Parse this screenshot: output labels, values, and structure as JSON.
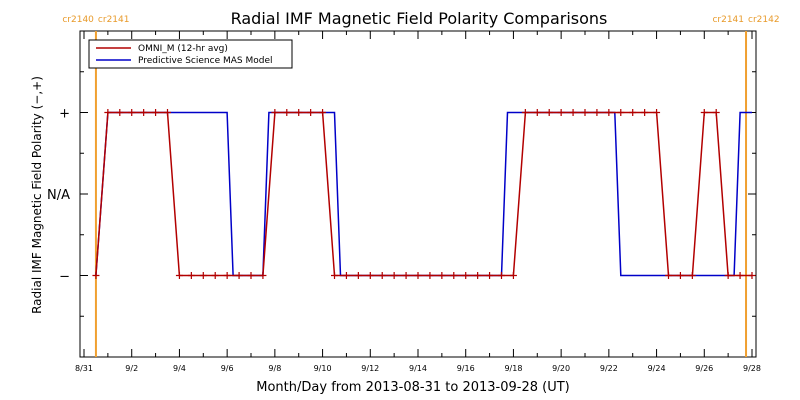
{
  "chart_data": {
    "type": "line",
    "title": "Radial IMF Magnetic Field Polarity Comparisons",
    "xlabel": "Month/Day from 2013-08-31 to 2013-09-28 (UT)",
    "ylabel": "Radial IMF Magnetic Field Polarity (−,+)",
    "xlim": [
      "2013-08-31",
      "2013-09-28"
    ],
    "ylim": [
      -2,
      2
    ],
    "x_ticks": [
      "8/31",
      "9/2",
      "9/4",
      "9/6",
      "9/8",
      "9/10",
      "9/12",
      "9/14",
      "9/16",
      "9/18",
      "9/20",
      "9/22",
      "9/24",
      "9/26",
      "9/28"
    ],
    "y_ticks": [
      {
        "value": 1,
        "label": "+"
      },
      {
        "value": 0,
        "label": "N/A"
      },
      {
        "value": -1,
        "label": "−"
      }
    ],
    "legend_position": "top-left",
    "carrington_rotations": [
      {
        "x": "2013-08-31T12:00",
        "left_label": "cr2140",
        "right_label": "cr2141"
      },
      {
        "x": "2013-09-27T18:00",
        "left_label": "cr2141",
        "right_label": "cr2142"
      }
    ],
    "series": [
      {
        "name": "OMNI_M (12-hr avg)",
        "color": "#b20000",
        "marker": "plus",
        "x": [
          "2013-08-31T12:00",
          "2013-09-01T00:00",
          "2013-09-01T12:00",
          "2013-09-02T00:00",
          "2013-09-02T12:00",
          "2013-09-03T00:00",
          "2013-09-03T12:00",
          "2013-09-04T00:00",
          "2013-09-04T12:00",
          "2013-09-05T00:00",
          "2013-09-05T12:00",
          "2013-09-06T00:00",
          "2013-09-06T12:00",
          "2013-09-07T00:00",
          "2013-09-07T12:00",
          "2013-09-08T00:00",
          "2013-09-08T12:00",
          "2013-09-09T00:00",
          "2013-09-09T12:00",
          "2013-09-10T00:00",
          "2013-09-10T12:00",
          "2013-09-11T00:00",
          "2013-09-11T12:00",
          "2013-09-12T00:00",
          "2013-09-12T12:00",
          "2013-09-13T00:00",
          "2013-09-13T12:00",
          "2013-09-14T00:00",
          "2013-09-14T12:00",
          "2013-09-15T00:00",
          "2013-09-15T12:00",
          "2013-09-16T00:00",
          "2013-09-16T12:00",
          "2013-09-17T00:00",
          "2013-09-17T12:00",
          "2013-09-18T00:00",
          "2013-09-18T12:00",
          "2013-09-19T00:00",
          "2013-09-19T12:00",
          "2013-09-20T00:00",
          "2013-09-20T12:00",
          "2013-09-21T00:00",
          "2013-09-21T12:00",
          "2013-09-22T00:00",
          "2013-09-22T12:00",
          "2013-09-23T00:00",
          "2013-09-23T12:00",
          "2013-09-24T00:00",
          "2013-09-24T12:00",
          "2013-09-25T00:00",
          "2013-09-25T12:00",
          "2013-09-26T00:00",
          "2013-09-26T12:00",
          "2013-09-27T00:00",
          "2013-09-27T12:00",
          "2013-09-28T00:00"
        ],
        "values": [
          -1,
          1,
          1,
          1,
          1,
          1,
          1,
          -1,
          -1,
          -1,
          -1,
          -1,
          -1,
          -1,
          -1,
          1,
          1,
          1,
          1,
          1,
          -1,
          -1,
          -1,
          -1,
          -1,
          -1,
          -1,
          -1,
          -1,
          -1,
          -1,
          -1,
          -1,
          -1,
          -1,
          -1,
          1,
          1,
          1,
          1,
          1,
          1,
          1,
          1,
          1,
          1,
          1,
          1,
          -1,
          -1,
          -1,
          1,
          1,
          -1,
          -1,
          -1
        ]
      },
      {
        "name": "Predictive Science MAS Model",
        "color": "#0000c8",
        "marker": "none",
        "x": [
          "2013-08-31T12:00",
          "2013-09-01T00:00",
          "2013-09-06T00:00",
          "2013-09-06T06:00",
          "2013-09-07T12:00",
          "2013-09-07T18:00",
          "2013-09-10T12:00",
          "2013-09-10T18:00",
          "2013-09-17T12:00",
          "2013-09-17T18:00",
          "2013-09-22T06:00",
          "2013-09-22T12:00",
          "2013-09-27T06:00",
          "2013-09-27T12:00",
          "2013-09-28T00:00"
        ],
        "values": [
          -1,
          1,
          1,
          -1,
          -1,
          1,
          1,
          -1,
          -1,
          1,
          1,
          -1,
          -1,
          1,
          1
        ]
      }
    ]
  }
}
